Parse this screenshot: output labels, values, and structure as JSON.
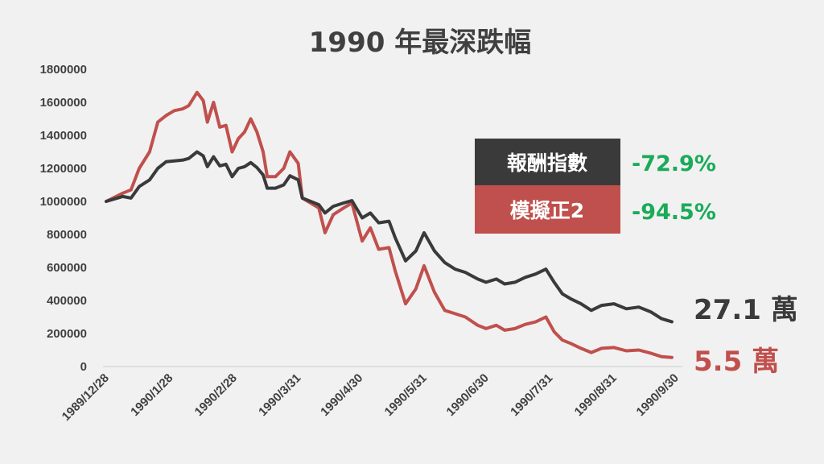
{
  "chart_data": {
    "type": "line",
    "title": "1990 年最深跌幅",
    "xlabel": "",
    "ylabel": "",
    "ylim": [
      0,
      1800000
    ],
    "yticks": [
      "1800000",
      "1600000",
      "1400000",
      "1200000",
      "1000000",
      "800000",
      "600000",
      "400000",
      "200000",
      "0"
    ],
    "xticks": [
      "1989/12/28",
      "1990/1/28",
      "1990/2/28",
      "1990/3/31",
      "1990/4/30",
      "1990/5/31",
      "1990/6/30",
      "1990/7/31",
      "1990/8/31",
      "1990/9/30"
    ],
    "grid": false,
    "series": [
      {
        "name": "報酬指數",
        "color": "#3a3a3a",
        "return": "-72.9%",
        "end_label": "27.1 萬",
        "points": [
          [
            "1989/12/28",
            1000000
          ],
          [
            "1990/1/5",
            1030000
          ],
          [
            "1990/1/9",
            1020000
          ],
          [
            "1990/1/13",
            1090000
          ],
          [
            "1990/1/18",
            1130000
          ],
          [
            "1990/1/22",
            1200000
          ],
          [
            "1990/1/26",
            1240000
          ],
          [
            "1990/1/30",
            1245000
          ],
          [
            "1990/2/3",
            1250000
          ],
          [
            "1990/2/6",
            1260000
          ],
          [
            "1990/2/10",
            1300000
          ],
          [
            "1990/2/13",
            1275000
          ],
          [
            "1990/2/15",
            1210000
          ],
          [
            "1990/2/18",
            1270000
          ],
          [
            "1990/2/21",
            1215000
          ],
          [
            "1990/2/24",
            1225000
          ],
          [
            "1990/2/27",
            1150000
          ],
          [
            "1990/3/2",
            1200000
          ],
          [
            "1990/3/5",
            1210000
          ],
          [
            "1990/3/8",
            1235000
          ],
          [
            "1990/3/11",
            1205000
          ],
          [
            "1990/3/14",
            1160000
          ],
          [
            "1990/3/16",
            1080000
          ],
          [
            "1990/3/20",
            1080000
          ],
          [
            "1990/3/24",
            1100000
          ],
          [
            "1990/3/27",
            1155000
          ],
          [
            "1990/3/31",
            1130000
          ],
          [
            "1990/4/2",
            1020000
          ],
          [
            "1990/4/6",
            1000000
          ],
          [
            "1990/4/10",
            980000
          ],
          [
            "1990/4/13",
            930000
          ],
          [
            "1990/4/17",
            970000
          ],
          [
            "1990/4/22",
            990000
          ],
          [
            "1990/4/26",
            1005000
          ],
          [
            "1990/5/1",
            900000
          ],
          [
            "1990/5/5",
            930000
          ],
          [
            "1990/5/9",
            870000
          ],
          [
            "1990/5/14",
            880000
          ],
          [
            "1990/5/17",
            780000
          ],
          [
            "1990/5/22",
            640000
          ],
          [
            "1990/5/27",
            700000
          ],
          [
            "1990/5/31",
            810000
          ],
          [
            "1990/6/5",
            700000
          ],
          [
            "1990/6/10",
            630000
          ],
          [
            "1990/6/15",
            590000
          ],
          [
            "1990/6/20",
            570000
          ],
          [
            "1990/6/26",
            530000
          ],
          [
            "1990/6/30",
            510000
          ],
          [
            "1990/7/5",
            530000
          ],
          [
            "1990/7/9",
            500000
          ],
          [
            "1990/7/14",
            510000
          ],
          [
            "1990/7/19",
            540000
          ],
          [
            "1990/7/24",
            560000
          ],
          [
            "1990/7/29",
            590000
          ],
          [
            "1990/8/2",
            510000
          ],
          [
            "1990/8/6",
            440000
          ],
          [
            "1990/8/10",
            410000
          ],
          [
            "1990/8/15",
            380000
          ],
          [
            "1990/8/20",
            340000
          ],
          [
            "1990/8/25",
            370000
          ],
          [
            "1990/8/31",
            380000
          ],
          [
            "1990/9/6",
            350000
          ],
          [
            "1990/9/12",
            360000
          ],
          [
            "1990/9/18",
            330000
          ],
          [
            "1990/9/23",
            290000
          ],
          [
            "1990/9/28",
            271000
          ]
        ]
      },
      {
        "name": "模擬正2",
        "color": "#c0504d",
        "return": "-94.5%",
        "end_label": "5.5 萬",
        "points": [
          [
            "1989/12/28",
            1000000
          ],
          [
            "1990/1/5",
            1050000
          ],
          [
            "1990/1/9",
            1070000
          ],
          [
            "1990/1/13",
            1200000
          ],
          [
            "1990/1/18",
            1300000
          ],
          [
            "1990/1/22",
            1480000
          ],
          [
            "1990/1/26",
            1520000
          ],
          [
            "1990/1/30",
            1550000
          ],
          [
            "1990/2/3",
            1560000
          ],
          [
            "1990/2/6",
            1580000
          ],
          [
            "1990/2/10",
            1660000
          ],
          [
            "1990/2/13",
            1610000
          ],
          [
            "1990/2/15",
            1480000
          ],
          [
            "1990/2/18",
            1600000
          ],
          [
            "1990/2/21",
            1450000
          ],
          [
            "1990/2/24",
            1460000
          ],
          [
            "1990/2/27",
            1300000
          ],
          [
            "1990/3/2",
            1380000
          ],
          [
            "1990/3/5",
            1420000
          ],
          [
            "1990/3/8",
            1500000
          ],
          [
            "1990/3/11",
            1420000
          ],
          [
            "1990/3/14",
            1300000
          ],
          [
            "1990/3/16",
            1150000
          ],
          [
            "1990/3/20",
            1150000
          ],
          [
            "1990/3/24",
            1200000
          ],
          [
            "1990/3/27",
            1300000
          ],
          [
            "1990/3/31",
            1230000
          ],
          [
            "1990/4/2",
            1020000
          ],
          [
            "1990/4/6",
            990000
          ],
          [
            "1990/4/10",
            960000
          ],
          [
            "1990/4/13",
            810000
          ],
          [
            "1990/4/17",
            920000
          ],
          [
            "1990/4/22",
            960000
          ],
          [
            "1990/4/26",
            990000
          ],
          [
            "1990/5/1",
            760000
          ],
          [
            "1990/5/5",
            840000
          ],
          [
            "1990/5/9",
            710000
          ],
          [
            "1990/5/14",
            720000
          ],
          [
            "1990/5/17",
            580000
          ],
          [
            "1990/5/22",
            380000
          ],
          [
            "1990/5/27",
            470000
          ],
          [
            "1990/5/31",
            610000
          ],
          [
            "1990/6/5",
            450000
          ],
          [
            "1990/6/10",
            340000
          ],
          [
            "1990/6/15",
            320000
          ],
          [
            "1990/6/20",
            300000
          ],
          [
            "1990/6/26",
            250000
          ],
          [
            "1990/6/30",
            230000
          ],
          [
            "1990/7/5",
            250000
          ],
          [
            "1990/7/9",
            220000
          ],
          [
            "1990/7/14",
            230000
          ],
          [
            "1990/7/19",
            255000
          ],
          [
            "1990/7/24",
            270000
          ],
          [
            "1990/7/29",
            300000
          ],
          [
            "1990/8/2",
            210000
          ],
          [
            "1990/8/6",
            160000
          ],
          [
            "1990/8/10",
            140000
          ],
          [
            "1990/8/15",
            110000
          ],
          [
            "1990/8/20",
            85000
          ],
          [
            "1990/8/25",
            110000
          ],
          [
            "1990/8/31",
            115000
          ],
          [
            "1990/9/6",
            95000
          ],
          [
            "1990/9/12",
            100000
          ],
          [
            "1990/9/18",
            80000
          ],
          [
            "1990/9/23",
            60000
          ],
          [
            "1990/9/28",
            55000
          ]
        ]
      }
    ]
  }
}
